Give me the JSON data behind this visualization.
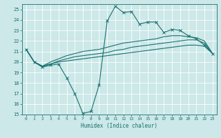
{
  "xlabel": "Humidex (Indice chaleur)",
  "bg_color": "#cce8e8",
  "grid_color": "#ffffff",
  "line_color": "#1a7070",
  "xlim": [
    -0.5,
    23.5
  ],
  "ylim": [
    15,
    25.5
  ],
  "xticks": [
    0,
    1,
    2,
    3,
    4,
    5,
    6,
    7,
    8,
    9,
    10,
    11,
    12,
    13,
    14,
    15,
    16,
    17,
    18,
    19,
    20,
    21,
    22,
    23
  ],
  "yticks": [
    15,
    16,
    17,
    18,
    19,
    20,
    21,
    22,
    23,
    24,
    25
  ],
  "line1_x": [
    0,
    1,
    2,
    3,
    4,
    5,
    6,
    7,
    8,
    9,
    10,
    11,
    12,
    13,
    14,
    15,
    16,
    17,
    18,
    19,
    20,
    21,
    22,
    23
  ],
  "line1_y": [
    21.2,
    20.0,
    19.5,
    19.7,
    19.8,
    18.5,
    17.0,
    15.1,
    15.3,
    17.8,
    23.9,
    25.3,
    24.7,
    24.8,
    23.6,
    23.8,
    23.8,
    22.8,
    23.1,
    23.0,
    22.5,
    22.2,
    21.6,
    20.8
  ],
  "line2_x": [
    0,
    1,
    2,
    3,
    4,
    5,
    6,
    7,
    8,
    9,
    10,
    11,
    12,
    13,
    14,
    15,
    16,
    17,
    18,
    19,
    20,
    21,
    22,
    23
  ],
  "line2_y": [
    21.2,
    20.0,
    19.6,
    19.8,
    20.0,
    20.1,
    20.2,
    20.3,
    20.4,
    20.5,
    20.6,
    20.7,
    20.8,
    20.9,
    21.0,
    21.1,
    21.2,
    21.3,
    21.4,
    21.5,
    21.6,
    21.6,
    21.5,
    20.8
  ],
  "line3_x": [
    0,
    1,
    2,
    3,
    4,
    5,
    6,
    7,
    8,
    9,
    10,
    11,
    12,
    13,
    14,
    15,
    16,
    17,
    18,
    19,
    20,
    21,
    22,
    23
  ],
  "line3_y": [
    21.2,
    20.0,
    19.6,
    19.8,
    20.1,
    20.3,
    20.5,
    20.6,
    20.7,
    20.8,
    20.9,
    21.1,
    21.2,
    21.4,
    21.5,
    21.6,
    21.7,
    21.8,
    21.9,
    22.0,
    22.1,
    22.1,
    21.8,
    20.8
  ],
  "line4_x": [
    0,
    1,
    2,
    3,
    4,
    5,
    6,
    7,
    8,
    9,
    10,
    11,
    12,
    13,
    14,
    15,
    16,
    17,
    18,
    19,
    20,
    21,
    22,
    23
  ],
  "line4_y": [
    21.2,
    20.0,
    19.6,
    20.0,
    20.3,
    20.6,
    20.8,
    21.0,
    21.1,
    21.2,
    21.4,
    21.6,
    21.8,
    21.9,
    22.0,
    22.1,
    22.2,
    22.4,
    22.5,
    22.5,
    22.4,
    22.3,
    22.0,
    20.8
  ]
}
